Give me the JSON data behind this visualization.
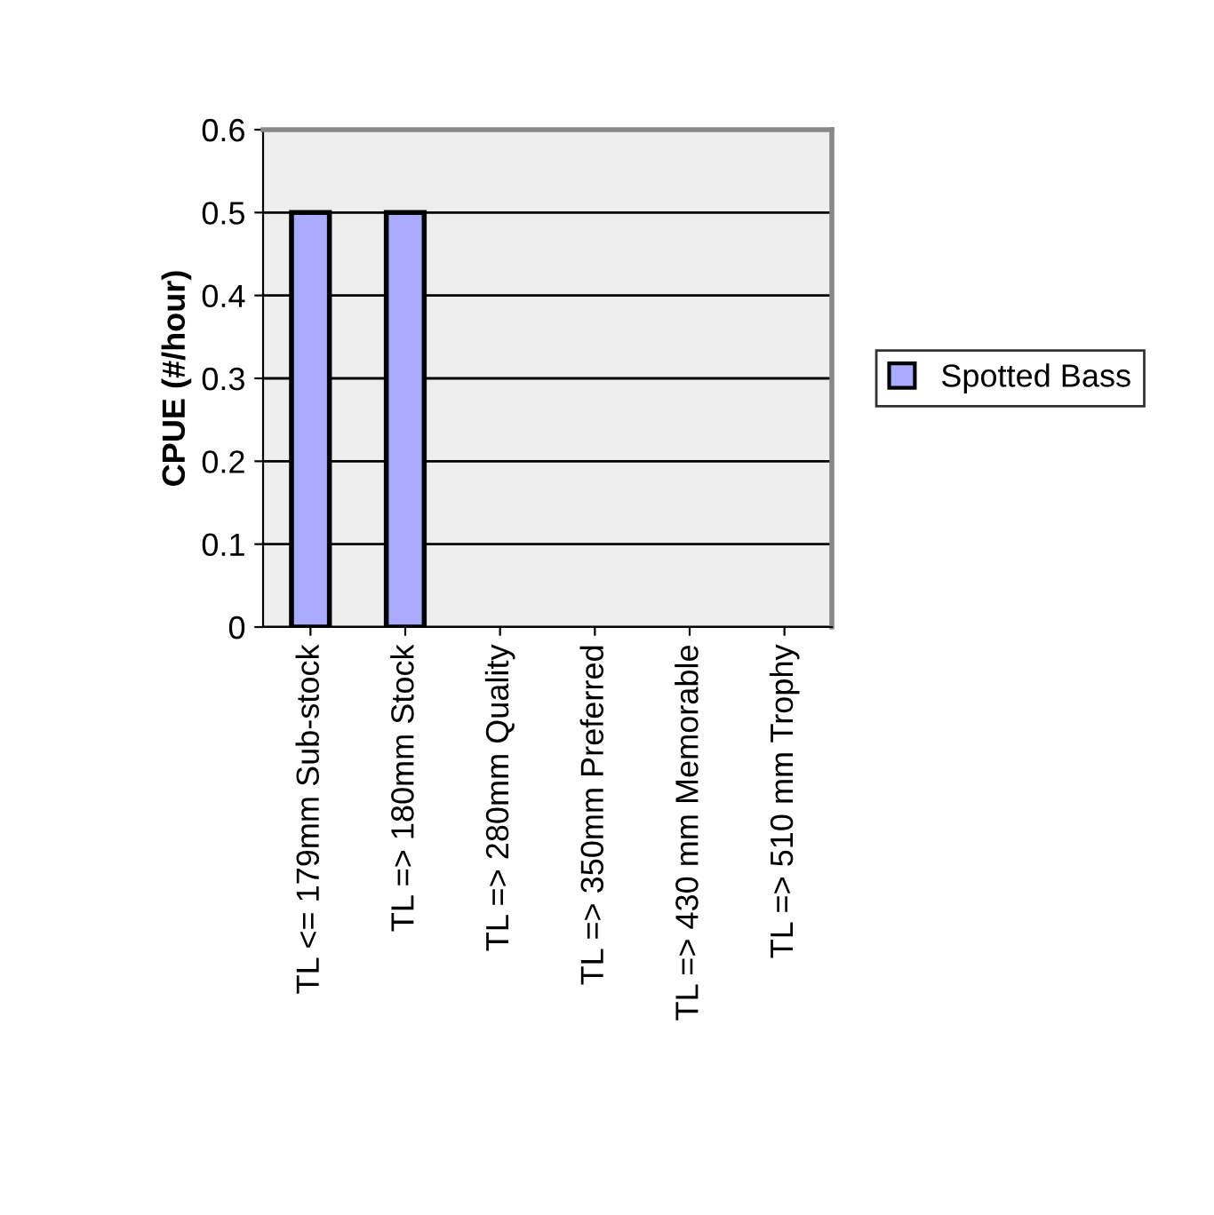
{
  "chart_data": {
    "type": "bar",
    "ylabel": "CPUE (#/hour)",
    "categories": [
      "TL <= 179mm Sub-stock",
      "TL => 180mm Stock",
      "TL => 280mm Quality",
      "TL => 350mm Preferred",
      "TL => 430 mm Memorable",
      "TL => 510 mm Trophy"
    ],
    "series": [
      {
        "name": "Spotted Bass",
        "color": "#aaaaff",
        "values": [
          0.5,
          0.5,
          0,
          0,
          0,
          0
        ]
      }
    ],
    "ylim": [
      0,
      0.6
    ],
    "yticks": [
      0,
      0.1,
      0.2,
      0.3,
      0.4,
      0.5,
      0.6
    ],
    "grid": "y",
    "legend": "right"
  }
}
